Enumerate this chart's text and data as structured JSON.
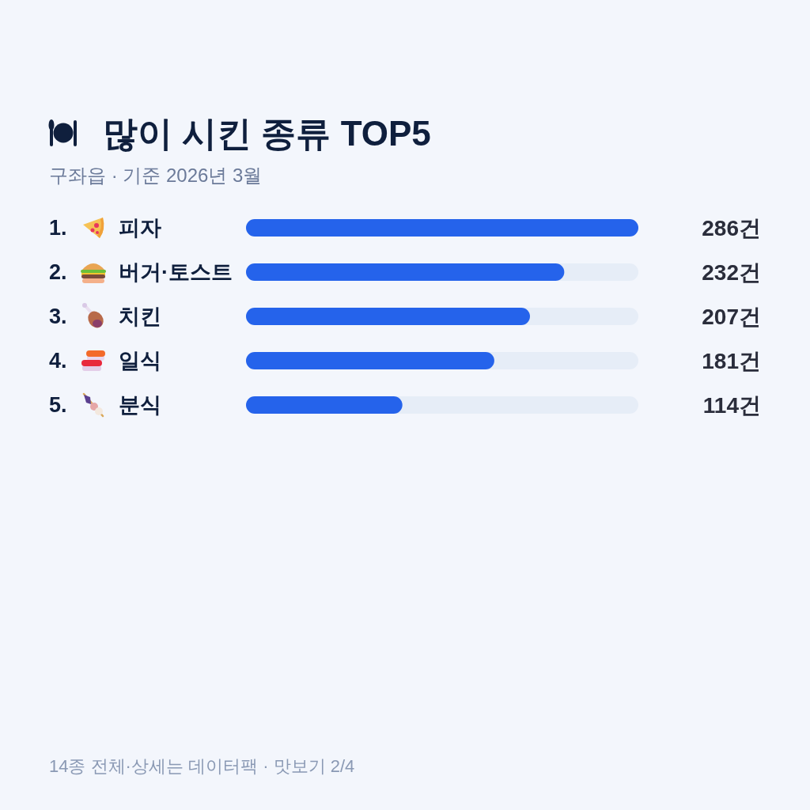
{
  "chart_data": {
    "type": "bar",
    "orientation": "horizontal",
    "title": "많이 시킨 종류 TOP5",
    "subtitle": "구좌읍 · 기준 2026년 3월",
    "categories": [
      "1. 피자",
      "2. 버거·토스트",
      "3. 치킨",
      "4. 일식",
      "5. 분식"
    ],
    "values": [
      286,
      232,
      207,
      181,
      114
    ],
    "value_labels": [
      "286건",
      "232건",
      "207건",
      "181건",
      "114건"
    ],
    "color": "#2563eb",
    "xlim": [
      0,
      286
    ],
    "tick_labels": "y",
    "annotations": [
      "14종 전체·상세는 데이터팩 · 맛보기 2/4"
    ]
  }
}
